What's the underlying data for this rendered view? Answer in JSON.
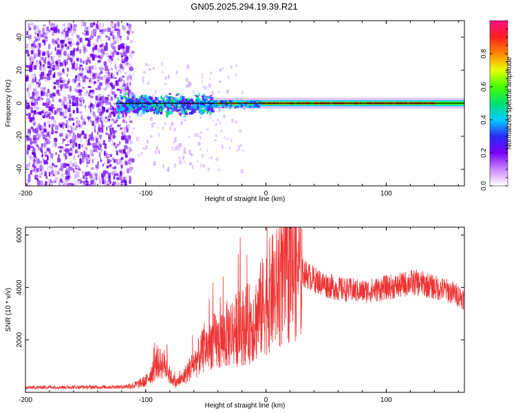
{
  "title": "GN05.2025.294.19.39.R21",
  "chart_data": [
    {
      "type": "heatmap",
      "name": "spectrogram",
      "xlabel": "Height of straight line (km)",
      "ylabel": "Frequency (Hz)",
      "xlim": [
        -200,
        165
      ],
      "ylim": [
        -50,
        50
      ],
      "xticks": [
        -200,
        -100,
        0,
        100
      ],
      "yticks": [
        -40,
        -20,
        0,
        20,
        40
      ],
      "colorbar": {
        "label": "Normalized spectral amplitude",
        "range": [
          0,
          1
        ],
        "ticks": [
          "0.0",
          "0.2",
          "0.4",
          "0.6",
          "0.8"
        ],
        "colors": [
          "#ffffff",
          "#cc88ff",
          "#7a00ff",
          "#2a2aff",
          "#00d0ff",
          "#00e070",
          "#44ff00",
          "#e8ff00",
          "#ff8800",
          "#ff2020",
          "#ff1080"
        ]
      },
      "regions": [
        {
          "x": [
            -200,
            -112
          ],
          "freq": [
            -50,
            50
          ],
          "amplitude": 0.12,
          "pattern": "scattered noise"
        },
        {
          "x": [
            -125,
            -45
          ],
          "freq": [
            -8,
            8
          ],
          "amplitude": 0.35,
          "pattern": "broadband signal"
        },
        {
          "x": [
            -45,
            165
          ],
          "freq": [
            -2,
            2
          ],
          "amplitude": 0.9,
          "pattern": "narrow line near 0 Hz"
        }
      ]
    },
    {
      "type": "line",
      "name": "snr",
      "xlabel": "Height of straight line (km)",
      "ylabel": "SNR (10 * v/v)",
      "xlim": [
        -200,
        165
      ],
      "ylim": [
        0,
        6300
      ],
      "xticks": [
        -200,
        -100,
        0,
        100
      ],
      "yticks": [
        2000,
        4000,
        6000
      ],
      "color": "#ee3333",
      "x": [
        -200,
        -180,
        -160,
        -140,
        -120,
        -110,
        -100,
        -90,
        -85,
        -80,
        -75,
        -70,
        -65,
        -60,
        -55,
        -50,
        -45,
        -40,
        -30,
        -20,
        -10,
        -5,
        0,
        5,
        10,
        15,
        20,
        25,
        30,
        40,
        50,
        60,
        70,
        80,
        90,
        100,
        110,
        120,
        130,
        140,
        150,
        160,
        165
      ],
      "values": [
        180,
        200,
        200,
        200,
        210,
        260,
        420,
        1100,
        1100,
        650,
        350,
        500,
        800,
        1100,
        1400,
        1700,
        1900,
        1900,
        2300,
        2500,
        2700,
        3100,
        3500,
        3800,
        4000,
        4300,
        4600,
        4800,
        4600,
        4300,
        4100,
        3950,
        3900,
        3850,
        3900,
        4000,
        4050,
        4200,
        4150,
        4000,
        3900,
        3700,
        3550
      ]
    }
  ]
}
